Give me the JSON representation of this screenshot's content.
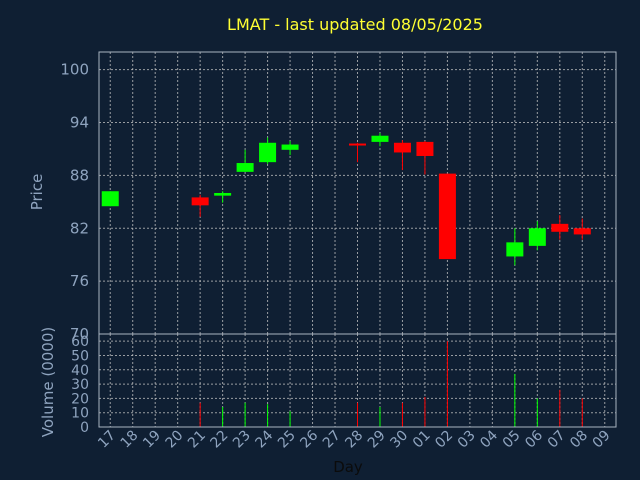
{
  "chart_data": {
    "type": "candlestick",
    "title": "LMAT - last updated 08/05/2025",
    "price_label": "Price",
    "volume_label": "Volume (0000)",
    "xlabel": "Day",
    "price_ylim": [
      70,
      102
    ],
    "price_ticks": [
      100,
      94,
      88,
      82,
      76,
      70
    ],
    "volume_ylim": [
      0,
      65
    ],
    "volume_ticks": [
      0,
      10,
      20,
      30,
      40,
      50,
      60
    ],
    "x_ticks": [
      "17",
      "18",
      "19",
      "20",
      "21",
      "22",
      "23",
      "24",
      "25",
      "26",
      "27",
      "28",
      "29",
      "30",
      "01",
      "02",
      "03",
      "04",
      "05",
      "06",
      "07",
      "08",
      "09"
    ],
    "colors": {
      "up": "#00ff00",
      "down": "#ff0000",
      "title": "#ffff33",
      "background": "#0f1f33"
    },
    "candles": [
      {
        "day": "17",
        "open": 84.5,
        "close": 86.2,
        "high": 86.2,
        "low": 84.5,
        "volume": 0
      },
      {
        "day": "21",
        "open": 85.5,
        "close": 84.6,
        "high": 85.8,
        "low": 83.3,
        "volume": 17
      },
      {
        "day": "22",
        "open": 85.7,
        "close": 86.0,
        "high": 86.2,
        "low": 84.9,
        "volume": 14
      },
      {
        "day": "23",
        "open": 88.4,
        "close": 89.4,
        "high": 90.9,
        "low": 88.4,
        "volume": 17
      },
      {
        "day": "24",
        "open": 89.5,
        "close": 91.7,
        "high": 92.3,
        "low": 89.3,
        "volume": 16
      },
      {
        "day": "25",
        "open": 90.9,
        "close": 91.5,
        "high": 91.9,
        "low": 90.3,
        "volume": 11
      },
      {
        "day": "28",
        "open": 91.5,
        "close": 91.4,
        "high": 91.7,
        "low": 89.5,
        "volume": 17
      },
      {
        "day": "29",
        "open": 91.8,
        "close": 92.5,
        "high": 92.8,
        "low": 91.3,
        "volume": 14
      },
      {
        "day": "30",
        "open": 91.7,
        "close": 90.6,
        "high": 92.0,
        "low": 88.6,
        "volume": 17
      },
      {
        "day": "01",
        "open": 91.8,
        "close": 90.2,
        "high": 91.9,
        "low": 88.1,
        "volume": 21
      },
      {
        "day": "02",
        "open": 88.2,
        "close": 78.5,
        "high": 88.2,
        "low": 78.5,
        "volume": 60
      },
      {
        "day": "05",
        "open": 78.8,
        "close": 80.4,
        "high": 82.0,
        "low": 77.8,
        "volume": 37
      },
      {
        "day": "06",
        "open": 80.0,
        "close": 82.0,
        "high": 82.8,
        "low": 79.5,
        "volume": 20
      },
      {
        "day": "07",
        "open": 82.5,
        "close": 81.6,
        "high": 83.5,
        "low": 80.7,
        "volume": 26
      },
      {
        "day": "08",
        "open": 82.0,
        "close": 81.3,
        "high": 83.1,
        "low": 80.7,
        "volume": 20
      }
    ]
  }
}
